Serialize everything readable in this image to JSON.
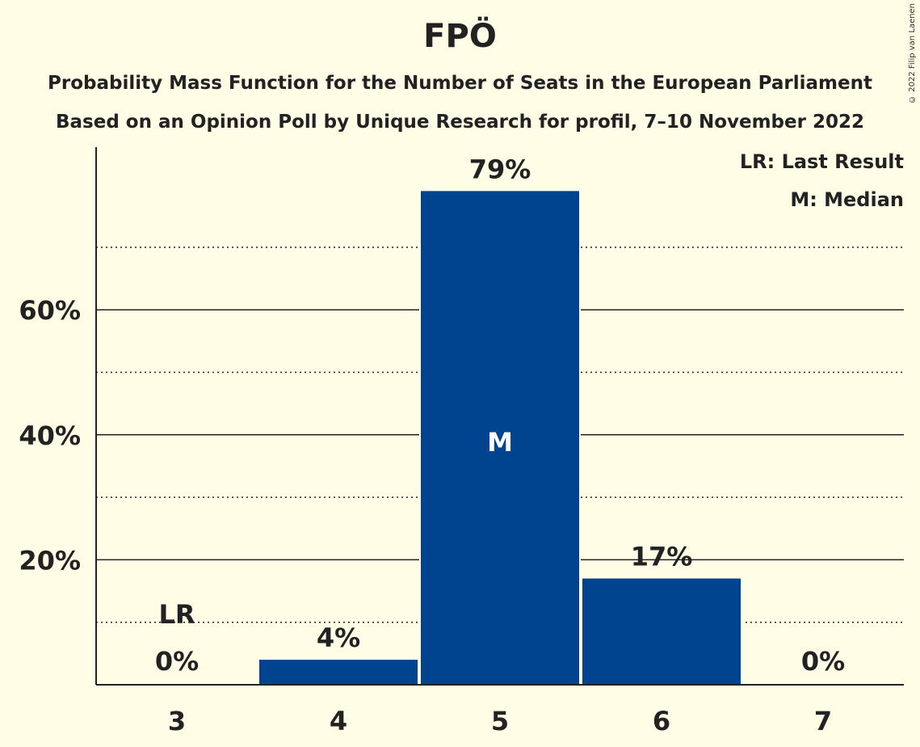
{
  "chart_data": {
    "type": "bar",
    "title": "FPÖ",
    "subtitle": "Probability Mass Function for the Number of Seats in the European Parliament",
    "subtitle2": "Based on an Opinion Poll by Unique Research for profil, 7–10 November 2022",
    "copyright": "© 2022 Filip van Laenen",
    "categories": [
      "3",
      "4",
      "5",
      "6",
      "7"
    ],
    "values": [
      0,
      4,
      79,
      17,
      0
    ],
    "value_labels": [
      "0%",
      "4%",
      "79%",
      "17%",
      "0%"
    ],
    "ylim": [
      0,
      86
    ],
    "yticks": [
      20,
      40,
      60
    ],
    "ytick_labels": [
      "20%",
      "40%",
      "60%"
    ],
    "minor_grid": [
      10,
      30,
      50,
      70
    ],
    "last_result_index": 0,
    "median_index": 2,
    "last_result_label": "LR",
    "median_label": "M",
    "legend": [
      "LR: Last Result",
      "M: Median"
    ],
    "bar_color": "#00438F"
  }
}
